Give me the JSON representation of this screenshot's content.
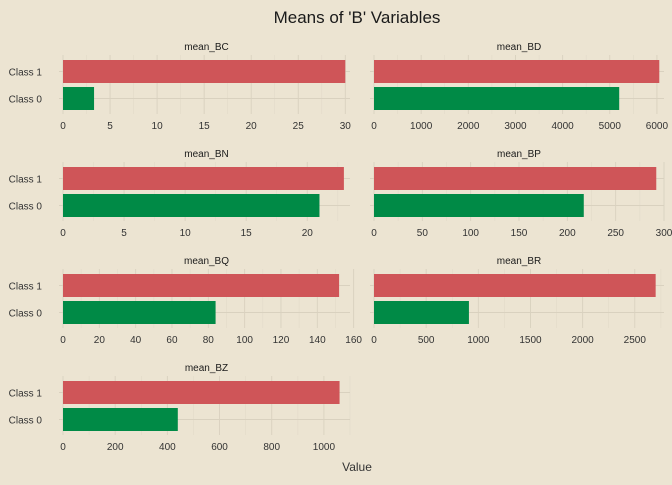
{
  "chart_data": {
    "type": "bar",
    "orientation": "horizontal",
    "title": "Means of 'B' Variables",
    "xlabel": "Value",
    "ylabel": "",
    "categories": [
      "Class 0",
      "Class 1"
    ],
    "colors": {
      "Class 1": "#cf5558",
      "Class 0": "#008a46"
    },
    "background": "#ece4d2",
    "grid": true,
    "legend": "none",
    "facets": [
      {
        "name": "mean_BC",
        "values": {
          "Class 0": 3.3,
          "Class 1": 30
        },
        "xlim": [
          0,
          30.5
        ],
        "ticks": [
          0,
          5,
          10,
          15,
          20,
          25,
          30
        ]
      },
      {
        "name": "mean_BD",
        "values": {
          "Class 0": 5200,
          "Class 1": 6050
        },
        "xlim": [
          0,
          6150
        ],
        "ticks": [
          0,
          1000,
          2000,
          3000,
          4000,
          5000,
          6000
        ]
      },
      {
        "name": "mean_BN",
        "values": {
          "Class 0": 21,
          "Class 1": 23
        },
        "xlim": [
          0,
          23.5
        ],
        "ticks": [
          0,
          5,
          10,
          15,
          20
        ]
      },
      {
        "name": "mean_BP",
        "values": {
          "Class 0": 217,
          "Class 1": 292
        },
        "xlim": [
          0,
          300
        ],
        "ticks": [
          0,
          50,
          100,
          150,
          200,
          250,
          300
        ]
      },
      {
        "name": "mean_BQ",
        "values": {
          "Class 0": 84,
          "Class 1": 152
        },
        "xlim": [
          0,
          158
        ],
        "ticks": [
          0,
          20,
          40,
          60,
          80,
          100,
          120,
          140,
          160
        ]
      },
      {
        "name": "mean_BR",
        "values": {
          "Class 0": 910,
          "Class 1": 2700
        },
        "xlim": [
          0,
          2780
        ],
        "ticks": [
          0,
          500,
          1000,
          1500,
          2000,
          2500
        ]
      },
      {
        "name": "mean_BZ",
        "values": {
          "Class 0": 440,
          "Class 1": 1060
        },
        "xlim": [
          0,
          1100
        ],
        "ticks": [
          0,
          200,
          400,
          600,
          800,
          1000
        ]
      }
    ]
  }
}
